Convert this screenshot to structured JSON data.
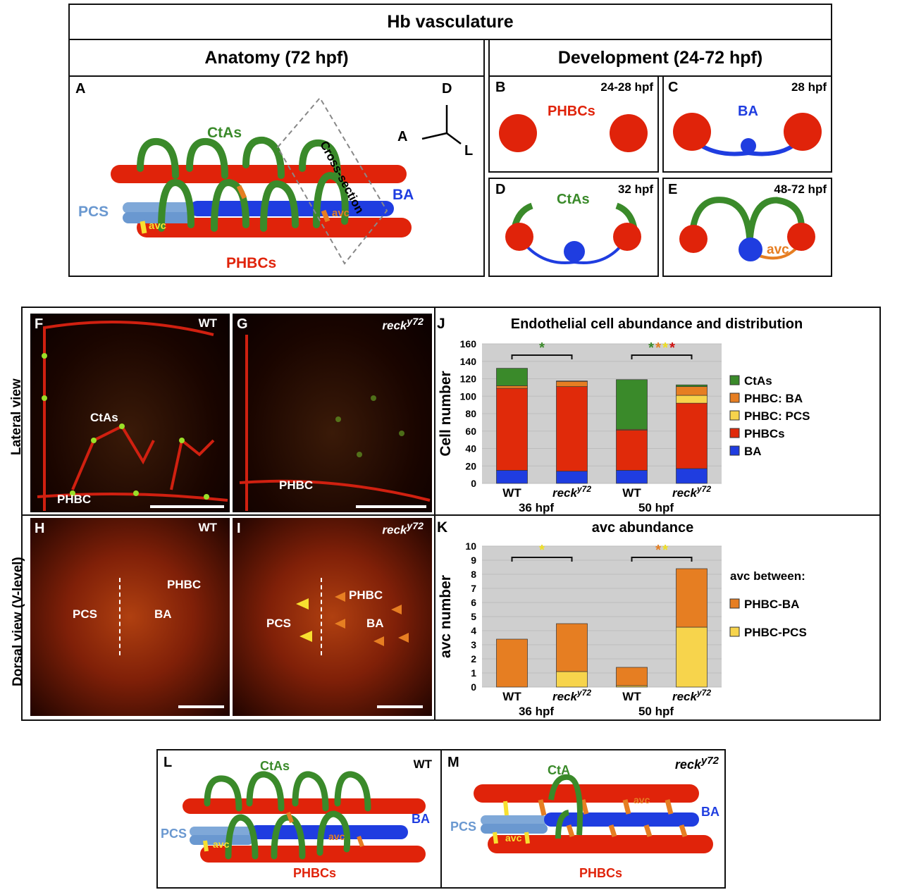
{
  "top": {
    "title": "Hb vasculature",
    "anatomy_header": "Anatomy (72 hpf)",
    "development_header": "Development (24-72 hpf)"
  },
  "panelA": {
    "letter": "A",
    "ctas": "CtAs",
    "ba": "BA",
    "pcs": "PCS",
    "avc1": "avc",
    "avc2": "avc",
    "phbcs": "PHBCs",
    "cross_section": "Cross-section",
    "axis_d": "D",
    "axis_a": "A",
    "axis_l": "L"
  },
  "panelB": {
    "letter": "B",
    "time": "24-28 hpf",
    "label": "PHBCs"
  },
  "panelC": {
    "letter": "C",
    "time": "28 hpf",
    "label": "BA"
  },
  "panelD": {
    "letter": "D",
    "time": "32 hpf",
    "label": "CtAs"
  },
  "panelE": {
    "letter": "E",
    "time": "48-72 hpf",
    "label": "avc"
  },
  "side_labels": {
    "lateral": "Lateral view",
    "dorsal": "Dorsal view (V-level)"
  },
  "panelF": {
    "letter": "F",
    "genotype": "WT",
    "ctas": "CtAs",
    "phbc": "PHBC"
  },
  "panelG": {
    "letter": "G",
    "genotype": "reck",
    "sup": "y72",
    "phbc": "PHBC"
  },
  "panelH": {
    "letter": "H",
    "genotype": "WT",
    "phbc": "PHBC",
    "pcs": "PCS",
    "ba": "BA"
  },
  "panelI": {
    "letter": "I",
    "genotype": "reck",
    "sup": "y72",
    "phbc": "PHBC",
    "pcs": "PCS",
    "ba": "BA"
  },
  "colors": {
    "ctas": "#3a8a2a",
    "phbc_ba": "#e67e22",
    "phbc_pcs": "#f7d44c",
    "phbcs": "#e02a0a",
    "ba": "#1f3de0",
    "grid_bg": "#cfcfcf"
  },
  "chart_data": [
    {
      "letter": "J",
      "type": "bar",
      "stacked": true,
      "title": "Endothelial cell abundance and distribution",
      "ylabel": "Cell number",
      "ylim": [
        0,
        160
      ],
      "yticks": [
        0,
        20,
        40,
        60,
        80,
        100,
        120,
        140,
        160
      ],
      "categories": [
        "WT",
        "reck",
        "WT",
        "reck"
      ],
      "category_sup": [
        "",
        "y72",
        "",
        "y72"
      ],
      "groups": [
        "36 hpf",
        "50 hpf"
      ],
      "series": [
        {
          "name": "BA",
          "values": [
            15,
            14,
            15,
            17
          ]
        },
        {
          "name": "PHBCs",
          "values": [
            94,
            97,
            46,
            75
          ]
        },
        {
          "name": "PHBC: PCS",
          "values": [
            0,
            0,
            0,
            9
          ]
        },
        {
          "name": "PHBC: BA",
          "values": [
            3,
            6,
            1,
            10
          ]
        },
        {
          "name": "CtAs",
          "values": [
            20,
            0.5,
            57,
            2
          ]
        }
      ],
      "legend": [
        "CtAs",
        "PHBC: BA",
        "PHBC: PCS",
        "PHBCs",
        "BA"
      ],
      "legend_position": "right",
      "significance": [
        "*",
        "* * * *"
      ]
    },
    {
      "letter": "K",
      "type": "bar",
      "stacked": true,
      "title": "avc abundance",
      "ylabel": "avc number",
      "ylim": [
        0,
        10
      ],
      "yticks": [
        0,
        1,
        2,
        3,
        4,
        5,
        6,
        7,
        8,
        9,
        10
      ],
      "categories": [
        "WT",
        "reck",
        "WT",
        "reck"
      ],
      "category_sup": [
        "",
        "y72",
        "",
        "y72"
      ],
      "groups": [
        "36 hpf",
        "50 hpf"
      ],
      "series": [
        {
          "name": "PHBC-PCS",
          "values": [
            0,
            1.1,
            0.1,
            4.25
          ]
        },
        {
          "name": "PHBC-BA",
          "values": [
            3.4,
            3.4,
            1.3,
            4.15
          ]
        }
      ],
      "legend_title": "avc between:",
      "legend": [
        "PHBC-BA",
        "PHBC-PCS"
      ],
      "legend_position": "right",
      "significance": [
        "*",
        "* *"
      ]
    }
  ],
  "panelL": {
    "letter": "L",
    "genotype": "WT",
    "ctas": "CtAs",
    "ba": "BA",
    "pcs": "PCS",
    "avc1": "avc",
    "avc2": "avc",
    "phbcs": "PHBCs"
  },
  "panelM": {
    "letter": "M",
    "genotype": "reck",
    "sup": "y72",
    "cta": "CtA",
    "ba": "BA",
    "pcs": "PCS",
    "avc1": "avc",
    "avc2": "avc",
    "phbcs": "PHBCs"
  }
}
